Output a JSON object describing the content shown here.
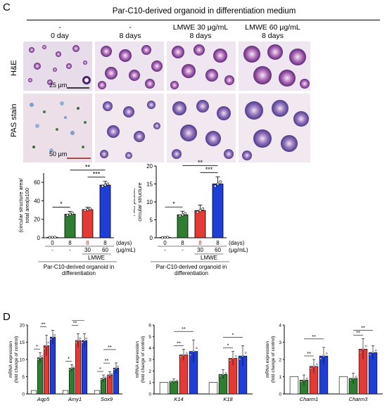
{
  "panel_c": {
    "label": "C",
    "header": "Par-C10-derived organoid in differentiation medium",
    "conditions": [
      {
        "line1": "-",
        "line2": "0 day"
      },
      {
        "line1": "-",
        "line2": "8 days"
      },
      {
        "line1": "LMWE 30 μg/mL",
        "line2": "8 days"
      },
      {
        "line1": "LMWE 60 μg/mL",
        "line2": "8 days"
      }
    ],
    "rows": [
      "H&E",
      "PAS stain"
    ],
    "scale_bars": [
      "25 μm",
      "50 μm"
    ]
  },
  "panel_d": {
    "label": "D"
  },
  "chart_data": [
    {
      "type": "bar",
      "ylabel": "(circular structure area/ total area)x100",
      "ylim": [
        0,
        70
      ],
      "yticks": [
        0,
        20,
        40,
        60
      ],
      "days": [
        "0",
        "8",
        "8",
        "8"
      ],
      "doses": [
        "-",
        "-",
        "30",
        "60"
      ],
      "days_unit": "(days)",
      "dose_unit": "(μg/mL)",
      "group_label": "LMWE",
      "xlabel": "Par-C10-derived organoid in differentiation",
      "values": [
        0.5,
        25.5,
        30.5,
        57
      ],
      "errors": [
        0.3,
        3,
        2.5,
        4
      ],
      "colors": [
        "#ffffff",
        "#2e7d32",
        "#e53935",
        "#1e3ed8"
      ],
      "significance": [
        {
          "from": 0,
          "to": 1,
          "label": "*"
        },
        {
          "from": 1,
          "to": 3,
          "label": "**"
        },
        {
          "from": 2,
          "to": 3,
          "label": "***"
        }
      ]
    },
    {
      "type": "bar",
      "ylabel": "PAS postive circular structure",
      "ylim": [
        0,
        20
      ],
      "yticks": [
        0,
        5,
        10,
        15,
        20
      ],
      "days": [
        "0",
        "8",
        "8",
        "8"
      ],
      "doses": [
        "-",
        "-",
        "30",
        "60"
      ],
      "days_unit": "(days)",
      "dose_unit": "(μg/mL)",
      "group_label": "LMWE",
      "xlabel": "Par-C10-derived organoid in differentiation",
      "values": [
        0.1,
        6.4,
        7.6,
        15
      ],
      "errors": [
        0.1,
        1,
        1.5,
        2
      ],
      "colors": [
        "#ffffff",
        "#2e7d32",
        "#e53935",
        "#1e3ed8"
      ],
      "significance": [
        {
          "from": 0,
          "to": 1,
          "label": "*"
        },
        {
          "from": 1,
          "to": 3,
          "label": "**"
        },
        {
          "from": 2,
          "to": 3,
          "label": "***"
        }
      ]
    },
    {
      "type": "bar",
      "ylabel": "mRNA expression (fold change of control)",
      "ylim": [
        0,
        20
      ],
      "yticks": [
        0,
        5,
        10,
        15,
        20
      ],
      "categories": [
        "Aqp5",
        "Amy1",
        "Sox9"
      ],
      "colors": [
        "#ffffff",
        "#2e7d32",
        "#e53935",
        "#1e3ed8"
      ],
      "series": [
        {
          "values": [
            1,
            1,
            1
          ]
        },
        {
          "values": [
            10.5,
            7.5,
            4.5
          ]
        },
        {
          "values": [
            14,
            15.5,
            5.5
          ]
        },
        {
          "values": [
            16.5,
            15.5,
            7.5
          ]
        }
      ],
      "errors": [
        [
          0.2,
          0.2,
          0.2
        ],
        [
          1.5,
          1,
          1
        ],
        [
          3,
          2,
          1
        ],
        [
          2,
          2,
          1.5
        ]
      ],
      "significance": [
        {
          "cat": 0,
          "from": 0,
          "to": 1,
          "label": "*"
        },
        {
          "cat": 0,
          "from": 1,
          "to": 2,
          "label": "**"
        },
        {
          "cat": 0,
          "from": 1,
          "to": 3,
          "label": "**"
        },
        {
          "cat": 1,
          "from": 0,
          "to": 1,
          "label": "*"
        },
        {
          "cat": 1,
          "from": 1,
          "to": 2,
          "label": "**"
        },
        {
          "cat": 1,
          "from": 1,
          "to": 3,
          "label": "**"
        },
        {
          "cat": 2,
          "from": 0,
          "to": 1,
          "label": "*"
        },
        {
          "cat": 2,
          "from": 1,
          "to": 2,
          "label": "**"
        },
        {
          "cat": 2,
          "from": 1,
          "to": 3,
          "label": "**"
        }
      ]
    },
    {
      "type": "bar",
      "ylabel": "mRNA expression (fold change of control)",
      "ylim": [
        0,
        6
      ],
      "yticks": [
        0,
        1,
        2,
        3,
        4,
        5,
        6
      ],
      "categories": [
        "K14",
        "K18"
      ],
      "colors": [
        "#ffffff",
        "#2e7d32",
        "#e53935",
        "#1e3ed8"
      ],
      "series": [
        {
          "values": [
            1,
            1
          ]
        },
        {
          "values": [
            1.1,
            1.7
          ]
        },
        {
          "values": [
            3.4,
            3.1
          ]
        },
        {
          "values": [
            3.7,
            3.3
          ]
        }
      ],
      "errors": [
        [
          0.05,
          0.05
        ],
        [
          0.2,
          0.4
        ],
        [
          0.5,
          0.6
        ],
        [
          1,
          0.9
        ]
      ],
      "significance": [
        {
          "cat": 0,
          "from": 1,
          "to": 2,
          "label": "**"
        },
        {
          "cat": 0,
          "from": 1,
          "to": 3,
          "label": "**"
        },
        {
          "cat": 1,
          "from": 1,
          "to": 2,
          "label": "*"
        },
        {
          "cat": 1,
          "from": 1,
          "to": 3,
          "label": "*"
        }
      ]
    },
    {
      "type": "bar",
      "ylabel": "mRNA expression (fold change of control)",
      "ylim": [
        0,
        4
      ],
      "yticks": [
        0,
        1,
        2,
        3,
        4
      ],
      "categories": [
        "Charm1",
        "Charm3"
      ],
      "colors": [
        "#ffffff",
        "#2e7d32",
        "#e53935",
        "#1e3ed8"
      ],
      "series": [
        {
          "values": [
            1,
            1
          ]
        },
        {
          "values": [
            0.8,
            0.9
          ]
        },
        {
          "values": [
            1.6,
            2.6
          ]
        },
        {
          "values": [
            2.2,
            2.4
          ]
        }
      ],
      "errors": [
        [
          0.05,
          0.05
        ],
        [
          0.3,
          0.3
        ],
        [
          0.4,
          0.6
        ],
        [
          0.5,
          0.4
        ]
      ],
      "significance": [
        {
          "cat": 0,
          "from": 1,
          "to": 2,
          "label": "**"
        },
        {
          "cat": 0,
          "from": 1,
          "to": 3,
          "label": "**"
        },
        {
          "cat": 1,
          "from": 1,
          "to": 2,
          "label": "**"
        },
        {
          "cat": 1,
          "from": 1,
          "to": 3,
          "label": "**"
        }
      ]
    }
  ]
}
